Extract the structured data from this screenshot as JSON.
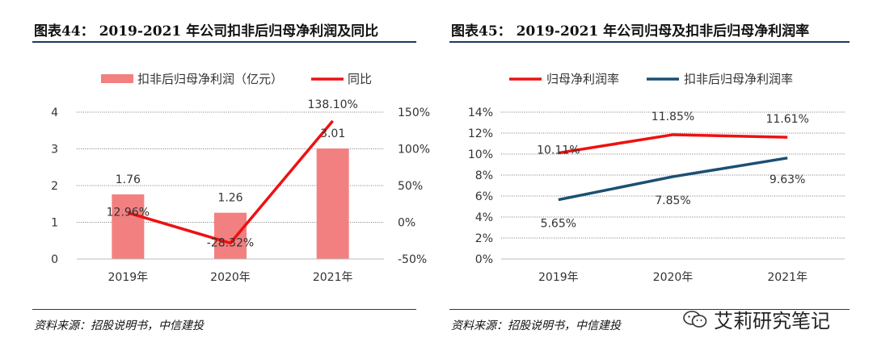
{
  "left_panel": {
    "title": "图表44： 2019-2021 年公司扣非后归母净利润及同比",
    "source": "资料来源：招股说明书，中信建投"
  },
  "right_panel": {
    "title": "图表45： 2019-2021 年公司归母及扣非后归母净利润率",
    "source": "资料来源：招股说明书，中信建投"
  },
  "watermark": {
    "text": "艾莉研究笔记",
    "icon": "wechat-icon"
  },
  "colors": {
    "bar": "#f28080",
    "red_line": "#ee1111",
    "navy_line": "#1b4f72",
    "rule": "#1f3864"
  },
  "chart_data": [
    {
      "type": "bar",
      "categories": [
        "2019年",
        "2020年",
        "2021年"
      ],
      "series": [
        {
          "name": "扣非后归母净利润（亿元）",
          "type": "bar",
          "axis": "left",
          "values": [
            1.76,
            1.26,
            3.01
          ],
          "labels": [
            "1.76",
            "1.26",
            "3.01"
          ]
        },
        {
          "name": "同比",
          "type": "line",
          "axis": "right",
          "values": [
            12.96,
            -28.32,
            138.1
          ],
          "labels": [
            "12.96%",
            "-28.32%",
            "138.10%"
          ]
        }
      ],
      "y_left": {
        "range": [
          0,
          4
        ],
        "ticks": [
          0,
          1,
          2,
          3,
          4
        ],
        "tick_labels": [
          "0",
          "1",
          "2",
          "3",
          "4"
        ]
      },
      "y_right": {
        "range": [
          -50,
          150
        ],
        "ticks": [
          -50,
          0,
          50,
          100,
          150
        ],
        "tick_labels": [
          "-50%",
          "0%",
          "50%",
          "100%",
          "150%"
        ]
      },
      "grid": true,
      "legend": "top"
    },
    {
      "type": "line",
      "categories": [
        "2019年",
        "2020年",
        "2021年"
      ],
      "series": [
        {
          "name": "归母净利润率",
          "values": [
            10.11,
            11.85,
            11.61
          ],
          "labels": [
            "10.11%",
            "11.85%",
            "11.61%"
          ]
        },
        {
          "name": "扣非后归母净利润率",
          "values": [
            5.65,
            7.85,
            9.63
          ],
          "labels": [
            "5.65%",
            "7.85%",
            "9.63%"
          ]
        }
      ],
      "y": {
        "range": [
          0,
          14
        ],
        "ticks": [
          0,
          2,
          4,
          6,
          8,
          10,
          12,
          14
        ],
        "tick_labels": [
          "0%",
          "2%",
          "4%",
          "6%",
          "8%",
          "10%",
          "12%",
          "14%"
        ]
      },
      "grid": true,
      "legend": "top"
    }
  ]
}
